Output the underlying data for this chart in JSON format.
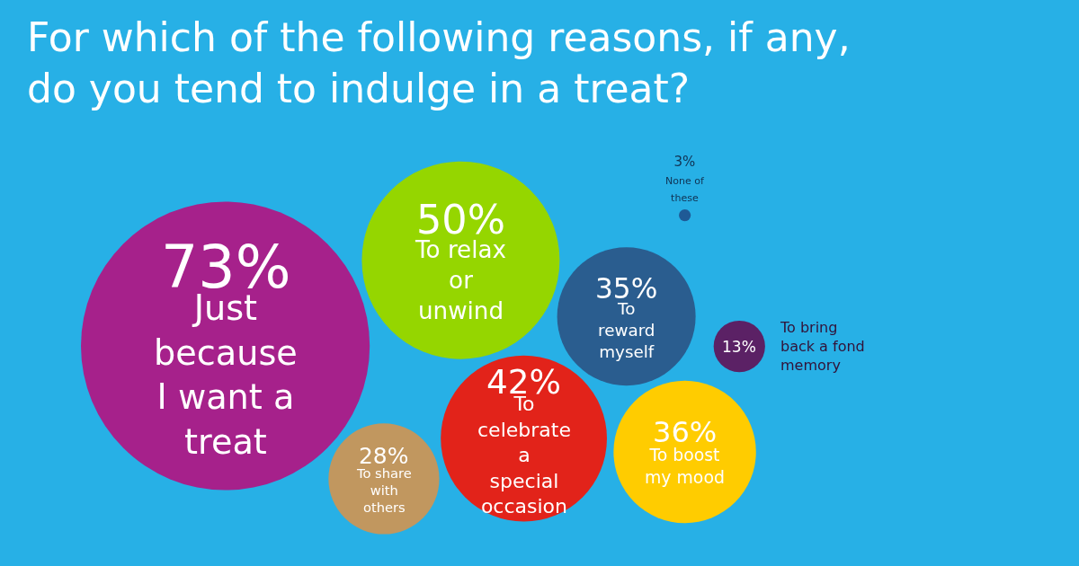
{
  "chart_data": {
    "type": "other",
    "title": "For which of the following reasons, if any, do you tend to indulge in a treat?",
    "categories": [
      "Just because I want a treat",
      "To share with others",
      "To relax or unwind",
      "To celebrate a special occasion",
      "To reward myself",
      "To boost my mood",
      "None of these",
      "To bring back a fond memory"
    ],
    "values": [
      73,
      28,
      50,
      42,
      35,
      36,
      3,
      13
    ],
    "value_labels": [
      "73%",
      "28%",
      "50%",
      "42%",
      "35%",
      "36%",
      "3%",
      "13%"
    ],
    "colors": [
      "#a6218b",
      "#c1975f",
      "#95d600",
      "#e2231a",
      "#2a5d8f",
      "#ffcc00",
      "#1f5a96",
      "#5b2165"
    ]
  }
}
